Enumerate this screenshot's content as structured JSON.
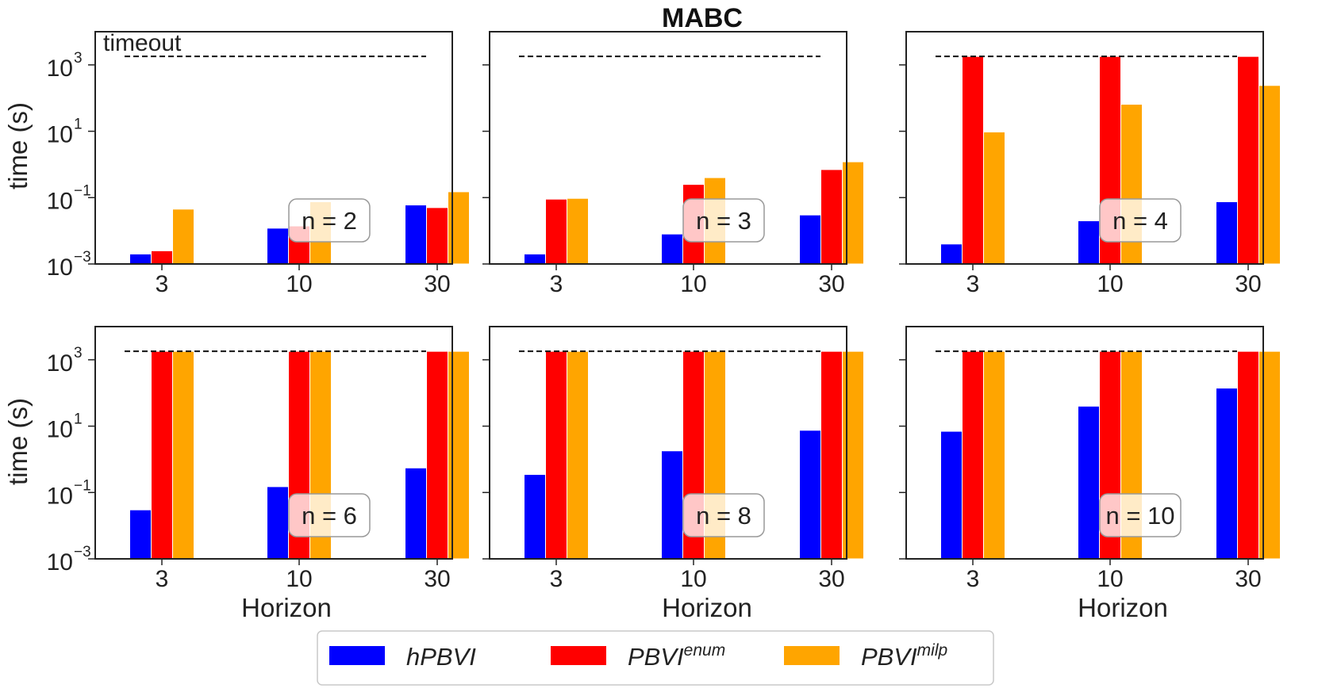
{
  "chart_data": {
    "type": "bar",
    "title": "MABC",
    "xlabel": "Horizon",
    "ylabel": "time (s)",
    "yscale": "log",
    "ylim": [
      0.001,
      10000
    ],
    "yticks": [
      {
        "value": 0.001,
        "base": "10",
        "exp": "−3"
      },
      {
        "value": 0.1,
        "base": "10",
        "exp": "−1"
      },
      {
        "value": 10,
        "base": "10",
        "exp": "1"
      },
      {
        "value": 1000,
        "base": "10",
        "exp": "3"
      }
    ],
    "categories": [
      "3",
      "10",
      "30"
    ],
    "timeout": {
      "label": "timeout",
      "value": 1800
    },
    "legend": {
      "placement": "bottom-center",
      "entries": [
        {
          "name": "hPBVI",
          "sup": "",
          "color": "#0000ff"
        },
        {
          "name": "PBVI",
          "sup": "enum",
          "color": "#ff0000"
        },
        {
          "name": "PBVI",
          "sup": "milp",
          "color": "#ffa500"
        }
      ]
    },
    "panels": [
      {
        "label": "n = 2",
        "series": [
          {
            "name": "hPBVI",
            "values": [
              0.002,
              0.012,
              0.06
            ]
          },
          {
            "name": "PBVI enum",
            "values": [
              0.0025,
              0.014,
              0.05
            ]
          },
          {
            "name": "PBVI milp",
            "values": [
              0.045,
              0.075,
              0.15
            ]
          }
        ]
      },
      {
        "label": "n = 3",
        "series": [
          {
            "name": "hPBVI",
            "values": [
              0.002,
              0.008,
              0.03
            ]
          },
          {
            "name": "PBVI enum",
            "values": [
              0.09,
              0.25,
              0.7
            ]
          },
          {
            "name": "PBVI milp",
            "values": [
              0.095,
              0.4,
              1.2
            ]
          }
        ]
      },
      {
        "label": "n = 4",
        "series": [
          {
            "name": "hPBVI",
            "values": [
              0.004,
              0.02,
              0.075
            ]
          },
          {
            "name": "PBVI enum",
            "values": [
              1800,
              1800,
              1800
            ]
          },
          {
            "name": "PBVI milp",
            "values": [
              9.5,
              65,
              240
            ]
          }
        ]
      },
      {
        "label": "n = 6",
        "series": [
          {
            "name": "hPBVI",
            "values": [
              0.03,
              0.15,
              0.55
            ]
          },
          {
            "name": "PBVI enum",
            "values": [
              1800,
              1800,
              1800
            ]
          },
          {
            "name": "PBVI milp",
            "values": [
              1800,
              1800,
              1800
            ]
          }
        ]
      },
      {
        "label": "n = 8",
        "series": [
          {
            "name": "hPBVI",
            "values": [
              0.35,
              1.8,
              7.5
            ]
          },
          {
            "name": "PBVI enum",
            "values": [
              1800,
              1800,
              1800
            ]
          },
          {
            "name": "PBVI milp",
            "values": [
              1800,
              1800,
              1800
            ]
          }
        ]
      },
      {
        "label": "n = 10",
        "series": [
          {
            "name": "hPBVI",
            "values": [
              7,
              40,
              140
            ]
          },
          {
            "name": "PBVI enum",
            "values": [
              1800,
              1800,
              1800
            ]
          },
          {
            "name": "PBVI milp",
            "values": [
              1800,
              1800,
              1800
            ]
          }
        ]
      }
    ]
  }
}
